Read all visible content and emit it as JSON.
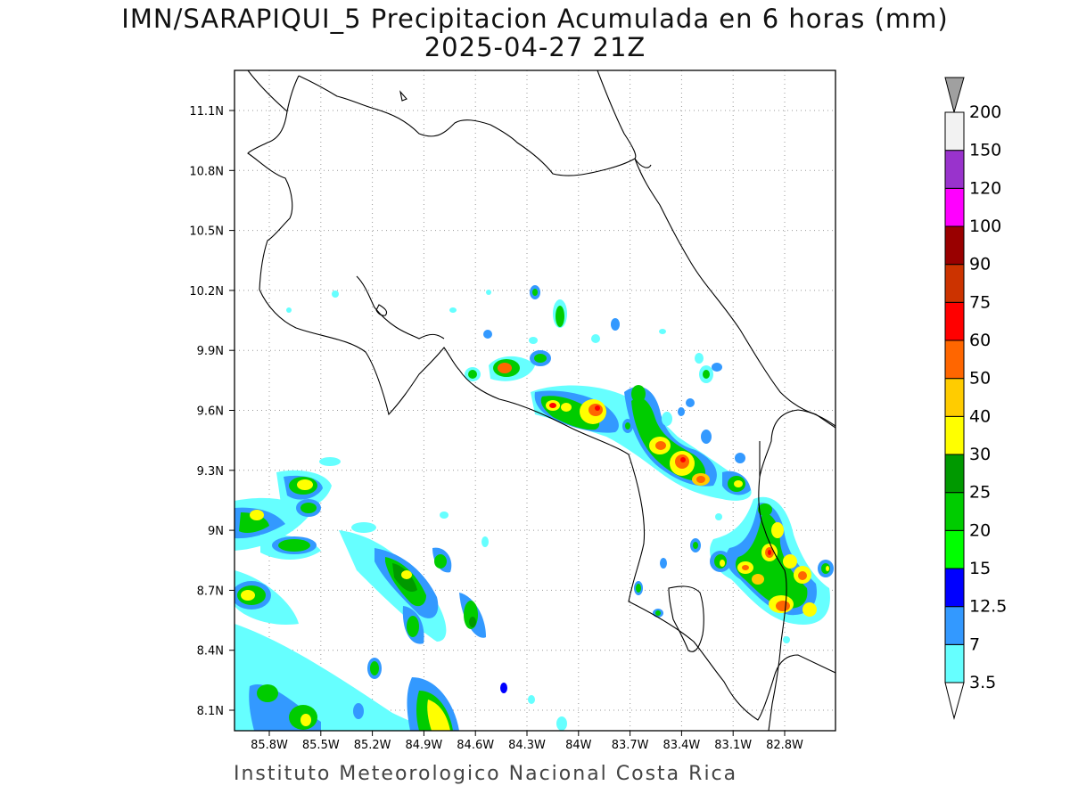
{
  "title": {
    "line1": "IMN/SARAPIQUI_5 Precipitacion Acumulada en 6 horas (mm)",
    "line2": "2025-04-27 21Z"
  },
  "footer": "Instituto Meteorologico Nacional Costa Rica",
  "map": {
    "lat_ticks": [
      "11.1N",
      "10.8N",
      "10.5N",
      "10.2N",
      "9.9N",
      "9.6N",
      "9.3N",
      "9N",
      "8.7N",
      "8.4N",
      "8.1N"
    ],
    "lon_ticks": [
      "85.8W",
      "85.5W",
      "85.2W",
      "84.9W",
      "84.6W",
      "84.3W",
      "84W",
      "83.7W",
      "83.4W",
      "83.1W",
      "82.8W"
    ],
    "grid": true
  },
  "colorbar": {
    "labels": [
      "3.5",
      "7",
      "12.5",
      "15",
      "20",
      "25",
      "30",
      "40",
      "50",
      "60",
      "75",
      "90",
      "100",
      "120",
      "150",
      "200"
    ],
    "colors": [
      "#66ffff",
      "#3399ff",
      "#0000ff",
      "#00ff00",
      "#00cc00",
      "#009900",
      "#ffff00",
      "#ffcc00",
      "#ff6600",
      "#ff0000",
      "#cc3300",
      "#990000",
      "#ff00ff",
      "#9933cc",
      "#f2f2f2"
    ],
    "triangle_top": "#a0a0a0",
    "triangle_bottom": "#ffffff"
  }
}
